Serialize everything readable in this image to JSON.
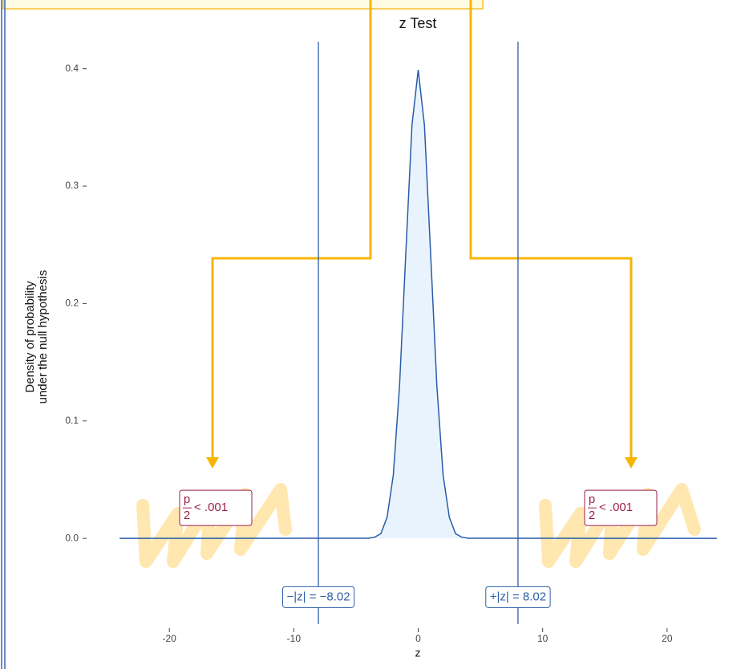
{
  "chart_data": {
    "type": "line",
    "title": "z Test",
    "xlabel": "z",
    "ylabel": [
      "Density of probability",
      "under the null hypothesis"
    ],
    "x": [
      -24,
      -4,
      -3.5,
      -3,
      -2.5,
      -2,
      -1.5,
      -1,
      -0.5,
      0,
      0.5,
      1,
      1.5,
      2,
      2.5,
      3,
      3.5,
      4,
      24
    ],
    "series": [
      {
        "color": "#2a5caa",
        "fill": "#e8f3fd",
        "values": [
          0,
          0.0001,
          0.001,
          0.004,
          0.018,
          0.054,
          0.13,
          0.242,
          0.352,
          0.399,
          0.352,
          0.242,
          0.13,
          0.054,
          0.018,
          0.004,
          0.001,
          0.0001,
          0
        ]
      }
    ],
    "xlim": [
      -24.2,
      24.2
    ],
    "ylim": [
      -0.073,
      0.423
    ],
    "xticks": [
      -20,
      -10,
      0,
      10,
      20
    ],
    "yticks": [
      {
        "value": 0,
        "label": "0.0"
      },
      0.1,
      0.2,
      0.3,
      0.4
    ],
    "z_lines": [
      {
        "value": -8.02,
        "label": "−|z| = −8.02"
      },
      {
        "value": 8.02,
        "label": "+|z| = 8.02"
      }
    ],
    "line_color": "#2f5fa8",
    "p_labels": [
      {
        "numerator": "p",
        "denominator": "2",
        "text": "< .001"
      },
      {
        "numerator": "p",
        "denominator": "2",
        "text": "< .001"
      }
    ],
    "p_color": "#9c1f4f"
  }
}
